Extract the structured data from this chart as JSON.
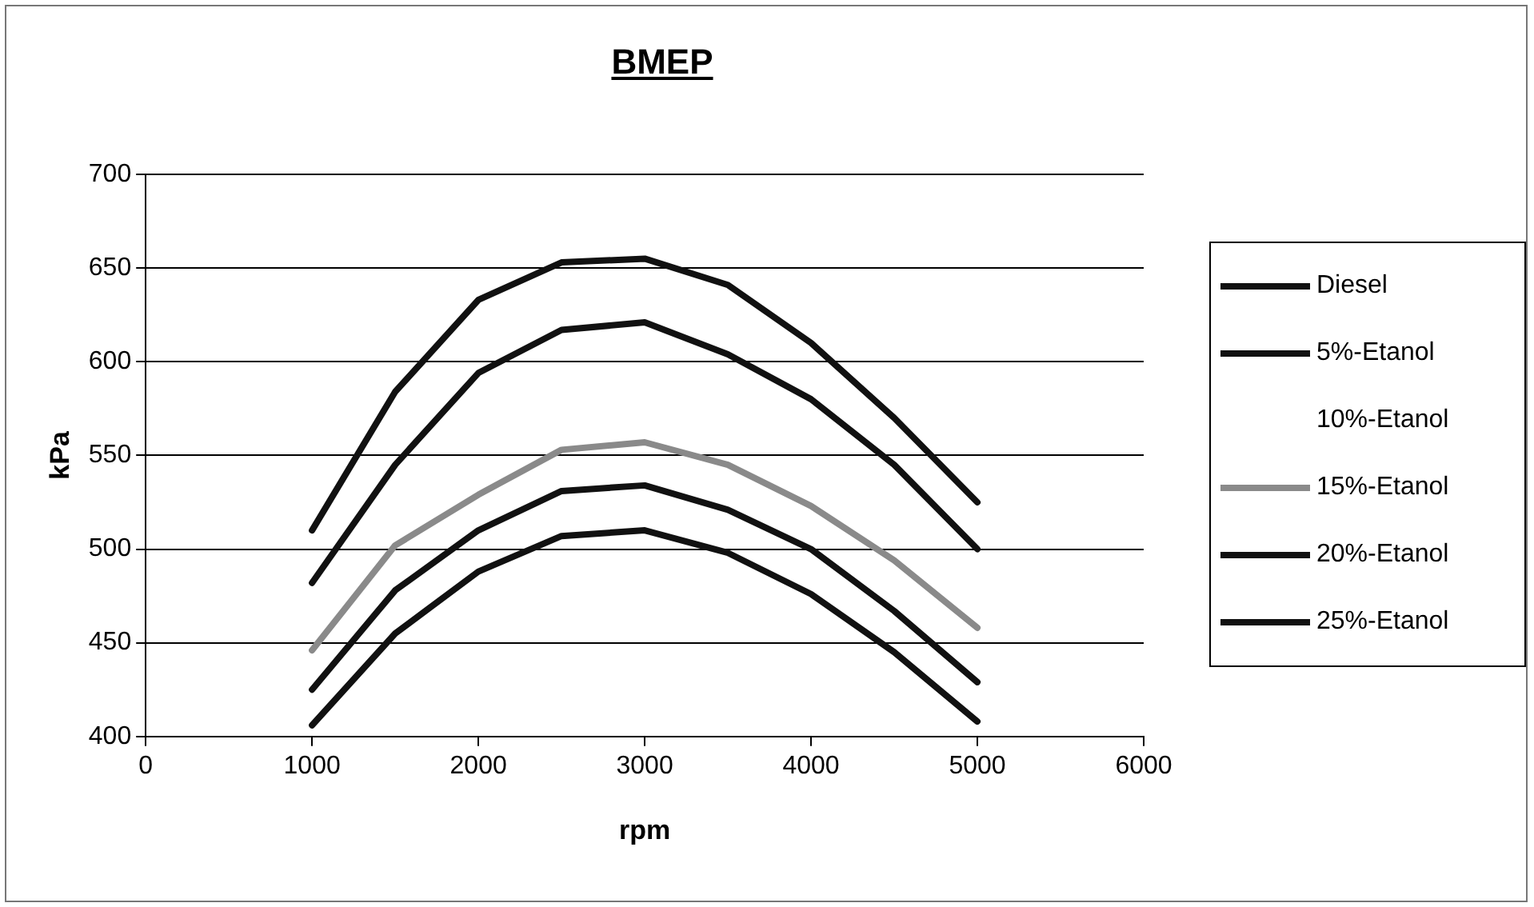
{
  "chart_data": {
    "type": "line",
    "title": "BMEP",
    "xlabel": "rpm",
    "ylabel": "kPa",
    "x": [
      1000,
      1500,
      2000,
      2500,
      3000,
      3500,
      4000,
      4500,
      5000
    ],
    "series": [
      {
        "name": "Diesel",
        "color": "#111111",
        "values": [
          510,
          584,
          633,
          653,
          655,
          641,
          610,
          570,
          525
        ]
      },
      {
        "name": "5%-Etanol",
        "color": "#111111",
        "values": [
          482,
          545,
          594,
          617,
          621,
          604,
          580,
          545,
          500
        ]
      },
      {
        "name": "10%-Etanol",
        "values": [
          null,
          null,
          null,
          null,
          null,
          null,
          null,
          null,
          null
        ]
      },
      {
        "name": "15%-Etanol",
        "color": "#8a8a8a",
        "values": [
          446,
          502,
          529,
          553,
          557,
          545,
          523,
          494,
          458
        ]
      },
      {
        "name": "20%-Etanol",
        "color": "#111111",
        "values": [
          425,
          478,
          510,
          531,
          534,
          521,
          500,
          467,
          429
        ]
      },
      {
        "name": "25%-Etanol",
        "color": "#111111",
        "values": [
          406,
          455,
          488,
          507,
          510,
          498,
          476,
          445,
          408
        ]
      }
    ],
    "xlim": [
      0,
      6000
    ],
    "xticks": [
      0,
      1000,
      2000,
      3000,
      4000,
      5000,
      6000
    ],
    "ylim": [
      400,
      700
    ],
    "yticks": [
      400,
      450,
      500,
      550,
      600,
      650,
      700
    ],
    "grid": "y",
    "legend": "right",
    "marker": "none",
    "line_style": "solid"
  }
}
